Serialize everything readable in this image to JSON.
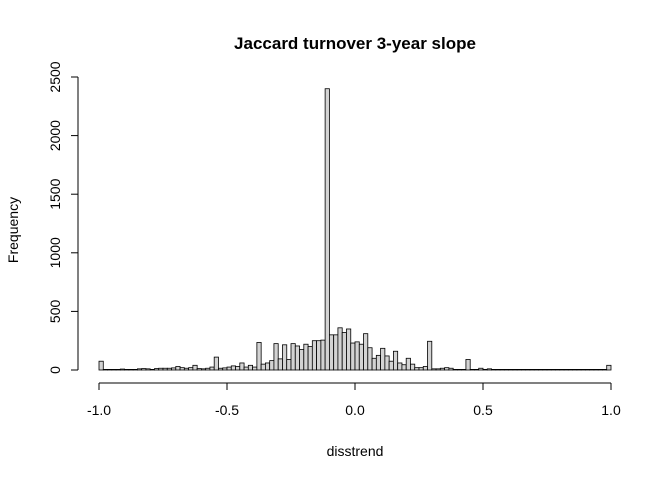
{
  "chart_data": {
    "type": "bar",
    "title": "Jaccard turnover 3-year slope",
    "xlabel": "disstrend",
    "ylabel": "Frequency",
    "xlim": [
      -1.0,
      1.0
    ],
    "ylim": [
      0,
      2500
    ],
    "x_ticks": [
      -1.0,
      -0.5,
      0.0,
      0.5,
      1.0
    ],
    "x_tick_labels": [
      "-1.0",
      "-0.5",
      "0.0",
      "0.5",
      "1.0"
    ],
    "y_ticks": [
      0,
      500,
      1000,
      1500,
      2000,
      2500
    ],
    "y_tick_labels": [
      "0",
      "500",
      "1000",
      "1500",
      "2000",
      "2500"
    ],
    "grid": false,
    "bar_color": "#d3d3d3",
    "bar_outline": "#000000",
    "bin_width": 0.0167,
    "bin_starts": [
      -1.0,
      -0.9833,
      -0.9667,
      -0.95,
      -0.9333,
      -0.9167,
      -0.9,
      -0.8833,
      -0.8667,
      -0.85,
      -0.8333,
      -0.8167,
      -0.8,
      -0.7833,
      -0.7667,
      -0.75,
      -0.7333,
      -0.7167,
      -0.7,
      -0.6833,
      -0.6667,
      -0.65,
      -0.6333,
      -0.6167,
      -0.6,
      -0.5833,
      -0.5667,
      -0.55,
      -0.5333,
      -0.5167,
      -0.5,
      -0.4833,
      -0.4667,
      -0.45,
      -0.4333,
      -0.4167,
      -0.4,
      -0.3833,
      -0.3667,
      -0.35,
      -0.3333,
      -0.3167,
      -0.3,
      -0.2833,
      -0.2667,
      -0.25,
      -0.2333,
      -0.2167,
      -0.2,
      -0.1833,
      -0.1667,
      -0.15,
      -0.1333,
      -0.1167,
      -0.1,
      -0.0833,
      -0.0667,
      -0.05,
      -0.0333,
      -0.0167,
      0.0,
      0.0167,
      0.0333,
      0.05,
      0.0667,
      0.0833,
      0.1,
      0.1167,
      0.1333,
      0.15,
      0.1667,
      0.1833,
      0.2,
      0.2167,
      0.2333,
      0.25,
      0.2667,
      0.2833,
      0.3,
      0.3167,
      0.3333,
      0.35,
      0.3667,
      0.3833,
      0.4,
      0.4167,
      0.4333,
      0.45,
      0.4667,
      0.4833,
      0.5,
      0.5167,
      0.5333,
      0.55,
      0.5667,
      0.5833,
      0.6,
      0.6167,
      0.6333,
      0.65,
      0.6667,
      0.6833,
      0.7,
      0.7167,
      0.7333,
      0.75,
      0.7667,
      0.7833,
      0.8,
      0.8167,
      0.8333,
      0.85,
      0.8667,
      0.8833,
      0.9,
      0.9167,
      0.9333,
      0.95,
      0.9667,
      0.9833
    ],
    "values": [
      75,
      5,
      5,
      5,
      5,
      8,
      5,
      5,
      5,
      10,
      12,
      10,
      5,
      12,
      15,
      15,
      15,
      18,
      30,
      20,
      15,
      20,
      40,
      12,
      10,
      15,
      25,
      110,
      15,
      18,
      25,
      35,
      30,
      60,
      25,
      40,
      25,
      235,
      50,
      60,
      80,
      225,
      95,
      215,
      90,
      225,
      205,
      175,
      220,
      200,
      250,
      250,
      255,
      2400,
      300,
      300,
      360,
      320,
      350,
      230,
      240,
      220,
      310,
      190,
      100,
      125,
      185,
      120,
      75,
      160,
      60,
      45,
      100,
      50,
      20,
      20,
      30,
      245,
      10,
      10,
      15,
      20,
      15,
      5,
      5,
      5,
      90,
      5,
      5,
      15,
      5,
      10,
      5,
      5,
      5,
      5,
      5,
      5,
      5,
      5,
      5,
      5,
      5,
      5,
      5,
      5,
      5,
      5,
      5,
      5,
      5,
      5,
      5,
      5,
      5,
      5,
      5,
      5,
      5,
      40
    ]
  }
}
